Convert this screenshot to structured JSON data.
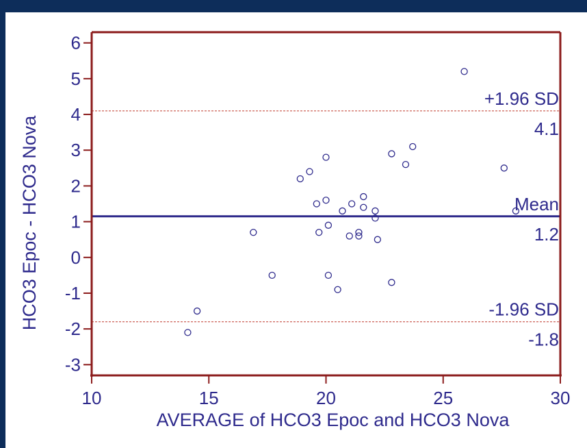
{
  "colors": {
    "background": "#0d2d5a",
    "panel": "#ffffff",
    "axis": "#8b1a1a",
    "text": "#2e2a8c",
    "points": "#2e2a8c",
    "mean_line": "#2e2a8c",
    "sd_lines": "#c0392b"
  },
  "chart_data": {
    "type": "scatter",
    "subtype": "bland-altman",
    "title": "",
    "xlabel": "AVERAGE of HCO3 Epoc and HCO3 Nova",
    "ylabel": "HCO3 Epoc - HCO3 Nova",
    "xlim": [
      10,
      30
    ],
    "ylim": [
      -3.3,
      6.3
    ],
    "xticks": [
      10,
      15,
      20,
      25,
      30
    ],
    "yticks": [
      -3,
      -2,
      -1,
      0,
      1,
      2,
      3,
      4,
      5,
      6
    ],
    "grid": false,
    "points": [
      {
        "x": 14.1,
        "y": -2.1
      },
      {
        "x": 14.5,
        "y": -1.5
      },
      {
        "x": 16.9,
        "y": 0.7
      },
      {
        "x": 17.7,
        "y": -0.5
      },
      {
        "x": 18.9,
        "y": 2.2
      },
      {
        "x": 19.3,
        "y": 2.4
      },
      {
        "x": 19.6,
        "y": 1.5
      },
      {
        "x": 19.7,
        "y": 0.7
      },
      {
        "x": 20.0,
        "y": 2.8
      },
      {
        "x": 20.0,
        "y": 1.6
      },
      {
        "x": 20.1,
        "y": 0.9
      },
      {
        "x": 20.1,
        "y": -0.5
      },
      {
        "x": 20.5,
        "y": -0.9
      },
      {
        "x": 20.7,
        "y": 1.3
      },
      {
        "x": 21.0,
        "y": 0.6
      },
      {
        "x": 21.1,
        "y": 1.5
      },
      {
        "x": 21.4,
        "y": 0.6
      },
      {
        "x": 21.4,
        "y": 0.7
      },
      {
        "x": 21.6,
        "y": 1.4
      },
      {
        "x": 21.6,
        "y": 1.7
      },
      {
        "x": 22.1,
        "y": 1.3
      },
      {
        "x": 22.1,
        "y": 1.1
      },
      {
        "x": 22.2,
        "y": 0.5
      },
      {
        "x": 22.8,
        "y": 2.9
      },
      {
        "x": 22.8,
        "y": -0.7
      },
      {
        "x": 23.4,
        "y": 2.6
      },
      {
        "x": 23.7,
        "y": 3.1
      },
      {
        "x": 25.9,
        "y": 5.2
      },
      {
        "x": 27.6,
        "y": 2.5
      },
      {
        "x": 28.1,
        "y": 1.3
      }
    ],
    "reference_lines": [
      {
        "key": "upper",
        "y": 4.1,
        "label": "+1.96 SD",
        "value_label": "4.1",
        "style": "dashed"
      },
      {
        "key": "mean",
        "y": 1.15,
        "label": "Mean",
        "value_label": "1.2",
        "style": "solid"
      },
      {
        "key": "lower",
        "y": -1.8,
        "label": "-1.96 SD",
        "value_label": "-1.8",
        "style": "dashed"
      }
    ]
  }
}
